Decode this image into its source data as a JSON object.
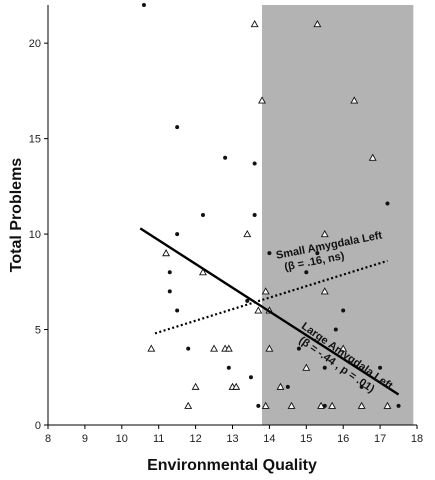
{
  "chart_data": {
    "type": "scatter",
    "xlabel": "Environmental Quality",
    "ylabel": "Total Problems",
    "xlim": [
      8,
      18
    ],
    "ylim": [
      0,
      22
    ],
    "xticks": [
      8,
      9,
      10,
      11,
      12,
      13,
      14,
      15,
      16,
      17,
      18
    ],
    "yticks": [
      0,
      5,
      10,
      15,
      20
    ],
    "grid": false,
    "shaded_region": {
      "x_from": 13.8,
      "x_to": 17.9,
      "color": "#b3b3b3"
    },
    "colors": {
      "marker": "#111111",
      "line": "#000000",
      "shade": "#b3b3b3"
    },
    "series": [
      {
        "marker": "dot",
        "x": [
          10.6,
          11.5,
          11.5,
          11.3,
          11.3,
          11.5,
          11.8,
          12.2,
          12.8,
          12.9,
          13.0,
          13.4,
          13.5,
          13.6,
          13.6,
          14.0,
          14.0,
          14.5,
          14.8,
          15.0,
          15.3,
          15.5,
          15.5,
          15.8,
          16.0,
          16.5,
          16.5,
          17.0,
          17.2,
          17.5,
          12.9,
          13.7
        ],
        "y": [
          22.0,
          15.6,
          10.0,
          8.0,
          7.0,
          6.0,
          4.0,
          11.0,
          14.0,
          3.0,
          2.0,
          6.5,
          2.5,
          13.7,
          11.0,
          9.0,
          6.0,
          2.0,
          4.0,
          8.0,
          9.0,
          1.0,
          3.0,
          5.0,
          6.0,
          2.0,
          1.0,
          3.0,
          11.6,
          1.0,
          4.0,
          1.0
        ]
      },
      {
        "marker": "triangle",
        "x": [
          10.8,
          11.2,
          11.8,
          12.0,
          12.2,
          12.5,
          12.8,
          12.9,
          13.0,
          13.1,
          13.4,
          13.6,
          13.8,
          13.9,
          13.9,
          14.0,
          14.3,
          14.6,
          15.0,
          15.3,
          15.4,
          15.5,
          15.5,
          15.7,
          16.0,
          16.3,
          16.5,
          16.8,
          17.2,
          13.7,
          14.0
        ],
        "y": [
          4.0,
          9.0,
          1.0,
          2.0,
          8.0,
          4.0,
          4.0,
          4.0,
          2.0,
          2.0,
          10.0,
          21.0,
          17.0,
          7.0,
          1.0,
          4.0,
          2.0,
          1.0,
          3.0,
          21.0,
          1.0,
          10.0,
          7.0,
          1.0,
          4.0,
          17.0,
          1.0,
          14.0,
          1.0,
          6.0,
          6.0
        ]
      }
    ],
    "trend_lines": [
      {
        "style": "solid",
        "x": [
          10.5,
          17.5
        ],
        "y": [
          10.3,
          1.6
        ]
      },
      {
        "style": "dotted",
        "x": [
          10.9,
          17.2
        ],
        "y": [
          4.8,
          8.6
        ]
      }
    ],
    "annotations": [
      {
        "line1": "Small Amygdala Left",
        "line2": "(β = .16, ns)",
        "anchor_x": 14.2,
        "anchor_y": 8.7,
        "angle": -11
      },
      {
        "line1": "Large Amygdala Left",
        "line2": "(β = -.44 , p = .01)",
        "anchor_x": 14.85,
        "anchor_y": 5.1,
        "angle": 35
      }
    ]
  }
}
